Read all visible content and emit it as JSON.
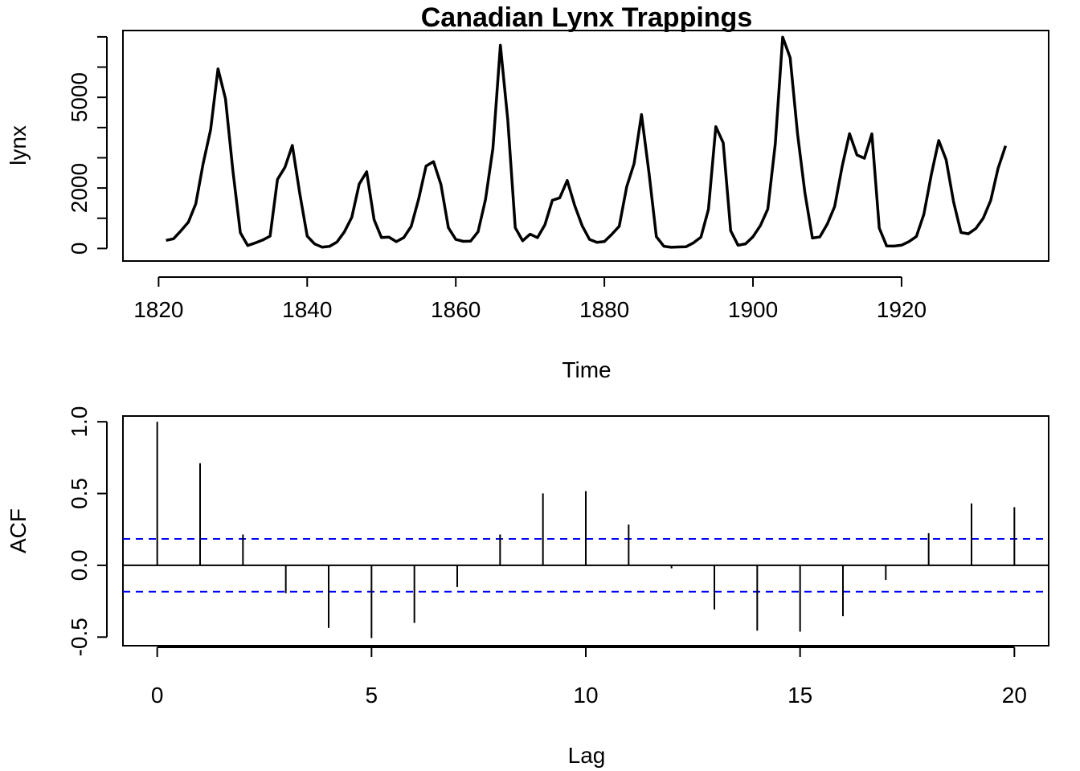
{
  "chart_data": [
    {
      "type": "line",
      "title": "Canadian Lynx Trappings",
      "xlabel": "Time",
      "ylabel": "lynx",
      "xlim": [
        1815.2,
        1939.8
      ],
      "ylim": [
        -415,
        7210
      ],
      "x_ticks": [
        1820,
        1840,
        1860,
        1880,
        1900,
        1920
      ],
      "y_ticks": [
        0,
        2000,
        5000
      ],
      "y_tick_marks": [
        0,
        1000,
        2000,
        3000,
        4000,
        5000,
        6000,
        7000
      ],
      "x_tick_labels": [
        "1820",
        "1840",
        "1860",
        "1880",
        "1900",
        "1920"
      ],
      "y_tick_labels": [
        "0",
        "2000",
        "5000"
      ],
      "color": "#000000",
      "grid": false,
      "series": [
        {
          "x": [
            1821,
            1822,
            1823,
            1824,
            1825,
            1826,
            1827,
            1828,
            1829,
            1830,
            1831,
            1832,
            1833,
            1834,
            1835,
            1836,
            1837,
            1838,
            1839,
            1840,
            1841,
            1842,
            1843,
            1844,
            1845,
            1846,
            1847,
            1848,
            1849,
            1850,
            1851,
            1852,
            1853,
            1854,
            1855,
            1856,
            1857,
            1858,
            1859,
            1860,
            1861,
            1862,
            1863,
            1864,
            1865,
            1866,
            1867,
            1868,
            1869,
            1870,
            1871,
            1872,
            1873,
            1874,
            1875,
            1876,
            1877,
            1878,
            1879,
            1880,
            1881,
            1882,
            1883,
            1884,
            1885,
            1886,
            1887,
            1888,
            1889,
            1890,
            1891,
            1892,
            1893,
            1894,
            1895,
            1896,
            1897,
            1898,
            1899,
            1900,
            1901,
            1902,
            1903,
            1904,
            1905,
            1906,
            1907,
            1908,
            1909,
            1910,
            1911,
            1912,
            1913,
            1914,
            1915,
            1916,
            1917,
            1918,
            1919,
            1920,
            1921,
            1922,
            1923,
            1924,
            1925,
            1926,
            1927,
            1928,
            1929,
            1930,
            1931,
            1932,
            1933,
            1934
          ],
          "values": [
            269,
            321,
            585,
            871,
            1475,
            2821,
            3928,
            5943,
            4950,
            2577,
            523,
            98,
            184,
            279,
            409,
            2285,
            2685,
            3409,
            1824,
            409,
            151,
            45,
            68,
            213,
            546,
            1033,
            2129,
            2536,
            957,
            361,
            377,
            225,
            360,
            731,
            1638,
            2725,
            2871,
            2119,
            684,
            299,
            236,
            245,
            552,
            1623,
            3311,
            6721,
            4254,
            687,
            255,
            473,
            358,
            784,
            1594,
            1676,
            2251,
            1426,
            756,
            299,
            201,
            229,
            469,
            736,
            2042,
            2811,
            4431,
            2511,
            389,
            73,
            39,
            49,
            59,
            188,
            377,
            1292,
            4031,
            3495,
            587,
            105,
            153,
            387,
            758,
            1307,
            3465,
            6991,
            6313,
            3794,
            1836,
            345,
            382,
            808,
            1388,
            2713,
            3800,
            3091,
            2985,
            3790,
            674,
            81,
            80,
            108,
            229,
            399,
            1132,
            2432,
            3574,
            2935,
            1537,
            529,
            485,
            662,
            1000,
            1590,
            2657,
            3396
          ]
        }
      ]
    },
    {
      "type": "bar",
      "xlabel": "Lag",
      "ylabel": "ACF",
      "xlim": [
        -0.8,
        20.8
      ],
      "ylim": [
        -0.56,
        1.04
      ],
      "x_ticks": [
        0,
        5,
        10,
        15,
        20
      ],
      "y_ticks": [
        -0.5,
        0.0,
        0.5,
        1.0
      ],
      "x_tick_labels": [
        "0",
        "5",
        "10",
        "15",
        "20"
      ],
      "y_tick_labels": [
        "-0.5",
        "0.0",
        "0.5",
        "1.0"
      ],
      "confidence_bound": 0.184,
      "confidence_color": "#0000ff",
      "grid": false,
      "categories": [
        0,
        1,
        2,
        3,
        4,
        5,
        6,
        7,
        8,
        9,
        10,
        11,
        12,
        13,
        14,
        15,
        16,
        17,
        18,
        19,
        20
      ],
      "values": [
        1.0,
        0.711,
        0.215,
        -0.194,
        -0.436,
        -0.507,
        -0.401,
        -0.151,
        0.215,
        0.501,
        0.517,
        0.284,
        -0.021,
        -0.308,
        -0.455,
        -0.462,
        -0.354,
        -0.102,
        0.224,
        0.431,
        0.405
      ]
    }
  ]
}
